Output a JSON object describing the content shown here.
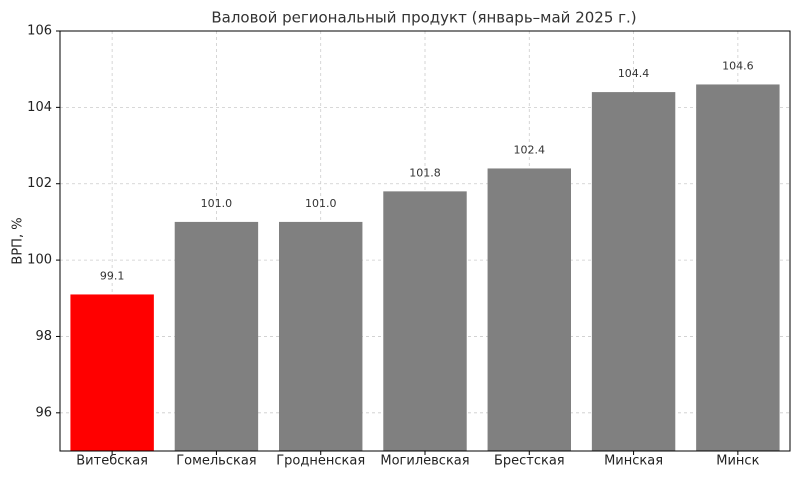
{
  "chart_data": {
    "type": "bar",
    "title": "Валовой региональный продукт (январь–май 2025 г.)",
    "y_label": "ВРП, %",
    "categories": [
      "Витебская",
      "Гомельская",
      "Гродненская",
      "Могилевская",
      "Брестская",
      "Минская",
      "Минск"
    ],
    "values": [
      99.1,
      101.0,
      101.0,
      101.8,
      102.4,
      104.4,
      104.6
    ],
    "value_labels": [
      "99.1",
      "101.0",
      "101.0",
      "101.8",
      "102.4",
      "104.4",
      "104.6"
    ],
    "colors": [
      "#ff0000",
      "#808080",
      "#808080",
      "#808080",
      "#808080",
      "#808080",
      "#808080"
    ],
    "ylim": [
      95,
      106
    ],
    "yticks": [
      96,
      98,
      100,
      102,
      104,
      106
    ],
    "grid": true
  }
}
